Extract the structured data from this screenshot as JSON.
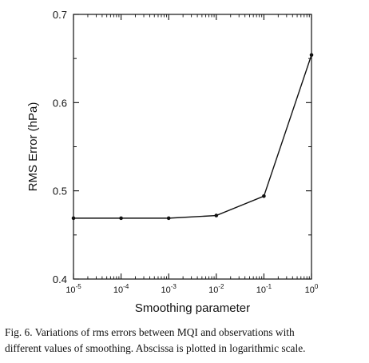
{
  "chart_data": {
    "type": "line",
    "xscale": "log",
    "xlabel": "Smoothing parameter",
    "ylabel": "RMS Error (hPa)",
    "xlim": [
      1e-05,
      1
    ],
    "ylim": [
      0.4,
      0.7
    ],
    "x_ticks": [
      {
        "value": 1e-05,
        "base": "10",
        "exp": "-5"
      },
      {
        "value": 0.0001,
        "base": "10",
        "exp": "-4"
      },
      {
        "value": 0.001,
        "base": "10",
        "exp": "-3"
      },
      {
        "value": 0.01,
        "base": "10",
        "exp": "-2"
      },
      {
        "value": 0.1,
        "base": "10",
        "exp": "-1"
      },
      {
        "value": 1,
        "base": "10",
        "exp": "0"
      }
    ],
    "y_ticks": [
      {
        "value": 0.4,
        "label": "0.4"
      },
      {
        "value": 0.5,
        "label": "0.5"
      },
      {
        "value": 0.6,
        "label": "0.6"
      },
      {
        "value": 0.7,
        "label": "0.7"
      }
    ],
    "series": [
      {
        "x": [
          1e-05,
          0.0001,
          0.001,
          0.01,
          0.1,
          1
        ],
        "y": [
          0.469,
          0.469,
          0.469,
          0.472,
          0.494,
          0.654
        ]
      }
    ],
    "grid": false,
    "legend": "none"
  },
  "caption": {
    "line1": "Fig. 6. Variations of rms errors between MQI and observations with",
    "line2": "different values of smoothing. Abscissa is plotted in logarithmic scale."
  }
}
